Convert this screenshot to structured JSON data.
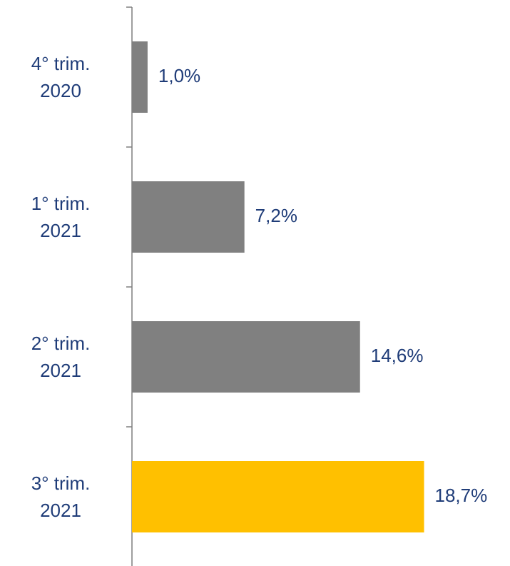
{
  "chart_data": {
    "type": "bar",
    "orientation": "horizontal",
    "categories": [
      "4° trim. 2020",
      "1° trim. 2021",
      "2° trim. 2021",
      "3° trim. 2021"
    ],
    "values": [
      1.0,
      7.2,
      14.6,
      18.7
    ],
    "value_labels": [
      "1,0%",
      "7,2%",
      "14,6%",
      "18,7%"
    ],
    "colors": [
      "#808080",
      "#808080",
      "#808080",
      "#ffc000"
    ],
    "xlim": [
      0,
      20
    ]
  }
}
